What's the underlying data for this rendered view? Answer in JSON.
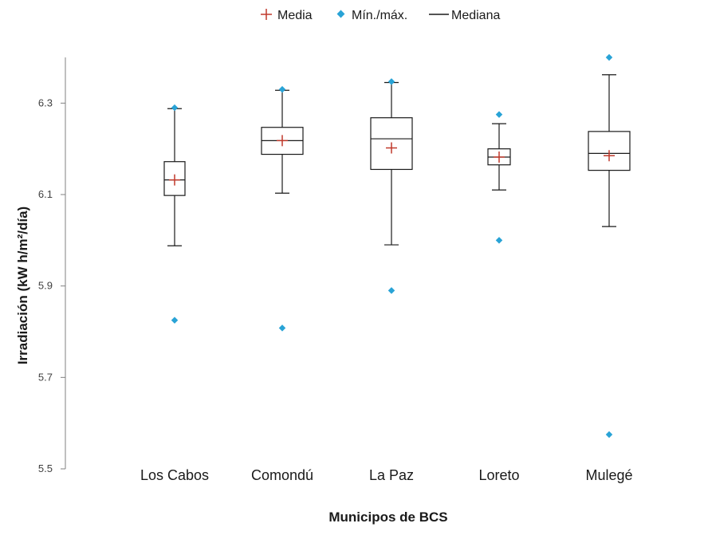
{
  "chart_data": {
    "type": "box",
    "xlabel": "Municipos de BCS",
    "ylabel": "Irradiación (kW h/m²/día)",
    "ylim": [
      5.5,
      6.4
    ],
    "yticks": [
      "5.5",
      "5.7",
      "5.9",
      "6.1",
      "6.3"
    ],
    "legend": {
      "position": "top",
      "items": [
        {
          "key": "mean",
          "label": "Media"
        },
        {
          "key": "minmax",
          "label": "Mín./máx."
        },
        {
          "key": "median",
          "label": "Mediana"
        }
      ]
    },
    "colors": {
      "mean": "#c0392b",
      "minmax": "#29a3d6",
      "box": "#1a1a1a",
      "axis": "#808080"
    },
    "categories": [
      "Los Cabos",
      "Comondú",
      "La Paz",
      "Loreto",
      "Mulegé"
    ],
    "boxes": [
      {
        "min": 5.825,
        "whisker_low": 5.988,
        "q1": 6.098,
        "median": 6.132,
        "q3": 6.172,
        "whisker_high": 6.288,
        "max": 6.29,
        "mean": 6.132
      },
      {
        "min": 5.808,
        "whisker_low": 6.103,
        "q1": 6.188,
        "median": 6.218,
        "q3": 6.247,
        "whisker_high": 6.328,
        "max": 6.33,
        "mean": 6.218
      },
      {
        "min": 5.89,
        "whisker_low": 5.99,
        "q1": 6.155,
        "median": 6.222,
        "q3": 6.268,
        "whisker_high": 6.345,
        "max": 6.347,
        "mean": 6.202
      },
      {
        "min": 6.0,
        "whisker_low": 6.11,
        "q1": 6.165,
        "median": 6.182,
        "q3": 6.2,
        "whisker_high": 6.255,
        "max": 6.275,
        "mean": 6.182
      },
      {
        "min": 5.575,
        "whisker_low": 6.03,
        "q1": 6.153,
        "median": 6.19,
        "q3": 6.238,
        "whisker_high": 6.362,
        "max": 6.4,
        "mean": 6.185
      }
    ]
  }
}
